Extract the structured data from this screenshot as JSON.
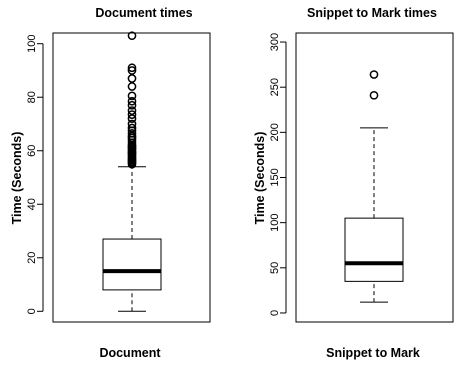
{
  "chart_data": [
    {
      "type": "box",
      "title": "Document times",
      "xlabel": "Document",
      "ylabel": "Time (Seconds)",
      "ylim": [
        -4,
        104
      ],
      "yticks": [
        0,
        20,
        40,
        60,
        80,
        100
      ],
      "box": {
        "min": 0,
        "q1": 8,
        "median": 15,
        "q3": 27,
        "max": 54
      },
      "outliers": [
        55,
        55.6,
        56,
        56.5,
        57,
        57.4,
        58,
        58.6,
        59,
        59.5,
        60,
        60.6,
        61,
        61.6,
        62,
        63,
        64,
        64.8,
        65.5,
        66.5,
        67.5,
        68.5,
        70,
        72,
        73.5,
        75,
        77,
        78.5,
        80.5,
        84,
        87,
        90,
        91,
        103
      ]
    },
    {
      "type": "box",
      "title": "Snippet to Mark times",
      "xlabel": "Snippet to Mark",
      "ylabel": "Time (Seconds)",
      "ylim": [
        -10,
        310
      ],
      "yticks": [
        0,
        50,
        100,
        150,
        200,
        250,
        300
      ],
      "box": {
        "min": 12,
        "q1": 35,
        "median": 55,
        "q3": 105,
        "max": 205
      },
      "outliers": [
        241,
        264
      ]
    }
  ]
}
